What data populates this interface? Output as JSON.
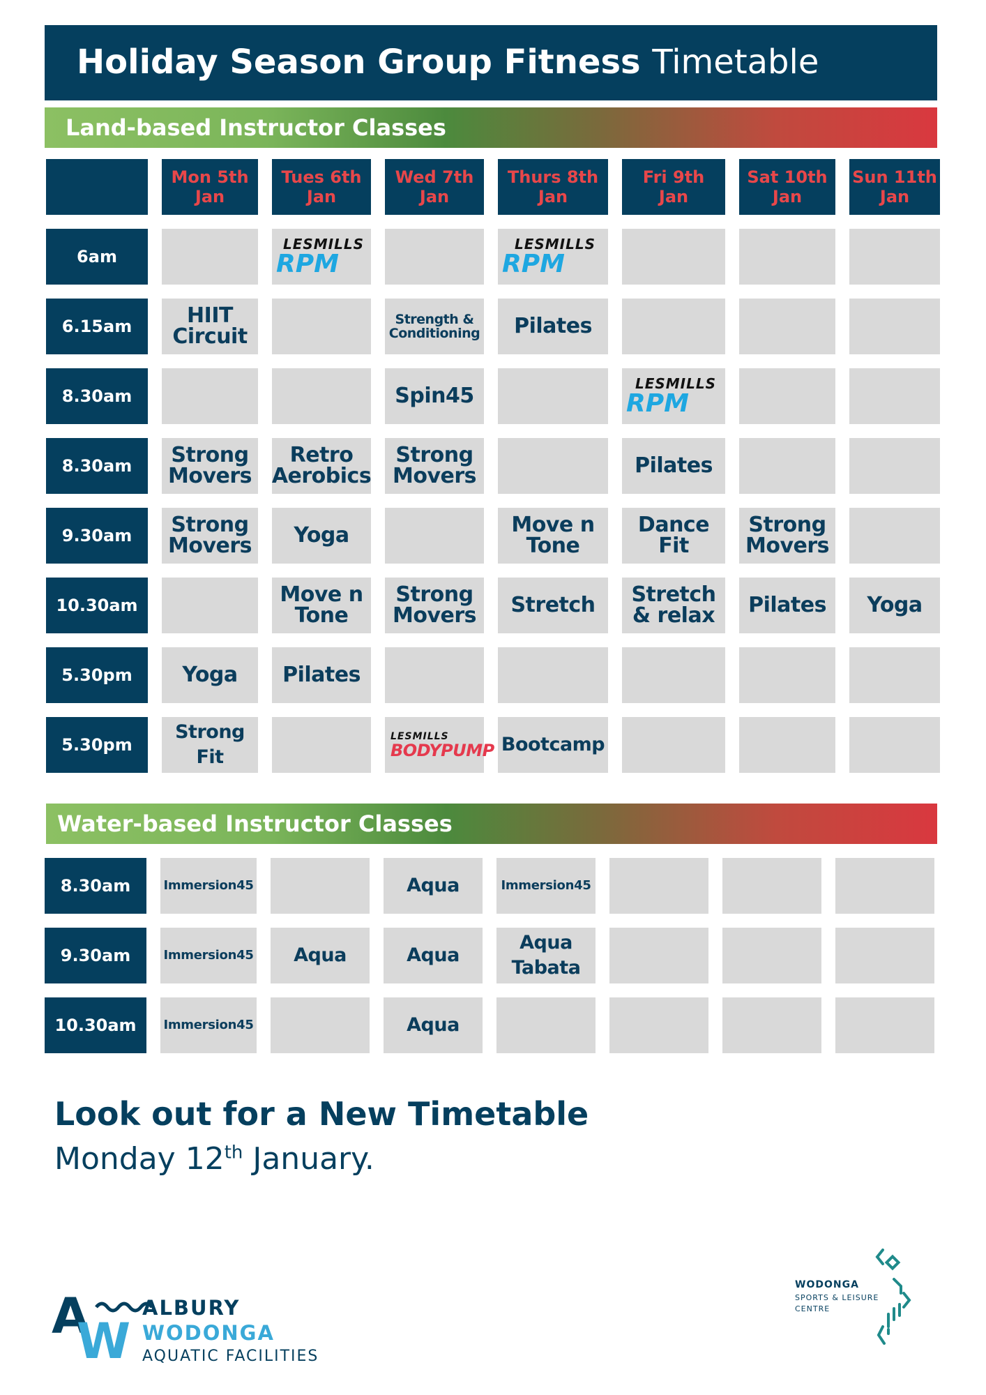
{
  "title": {
    "bold": "Holiday Season Group Fitness",
    "light": "Timetable"
  },
  "land": {
    "heading": "Land-based Instructor Classes",
    "days": [
      {
        "l1": "Mon 5th",
        "l2": "Jan"
      },
      {
        "l1": "Tues 6th",
        "l2": "Jan"
      },
      {
        "l1": "Wed 7th",
        "l2": "Jan"
      },
      {
        "l1": "Thurs 8th",
        "l2": "Jan"
      },
      {
        "l1": "Fri 9th",
        "l2": "Jan"
      },
      {
        "l1": "Sat 10th",
        "l2": "Jan"
      },
      {
        "l1": "Sun 11th",
        "l2": "Jan"
      }
    ],
    "rows": [
      {
        "time": "6am",
        "cells": [
          null,
          {
            "type": "lesmills",
            "brand": "LESMILLS",
            "program": "RPM"
          },
          null,
          {
            "type": "lesmills",
            "brand": "LESMILLS",
            "program": "RPM"
          },
          null,
          null,
          null
        ]
      },
      {
        "time": "6.15am",
        "cells": [
          {
            "type": "text",
            "lines": [
              "HIIT",
              "Circuit"
            ]
          },
          null,
          {
            "type": "text",
            "size": "sm",
            "lines": [
              "Strength &",
              "Conditioning"
            ]
          },
          {
            "type": "text",
            "lines": [
              "Pilates"
            ]
          },
          null,
          null,
          null
        ]
      },
      {
        "time": "8.30am",
        "cells": [
          null,
          null,
          {
            "type": "text",
            "lines": [
              "Spin45"
            ]
          },
          null,
          {
            "type": "lesmills",
            "brand": "LESMILLS",
            "program": "RPM"
          },
          null,
          null
        ]
      },
      {
        "time": "8.30am",
        "cells": [
          {
            "type": "text",
            "lines": [
              "Strong",
              "Movers"
            ]
          },
          {
            "type": "text",
            "lines": [
              "Retro",
              "Aerobics"
            ]
          },
          {
            "type": "text",
            "lines": [
              "Strong",
              "Movers"
            ]
          },
          null,
          {
            "type": "text",
            "lines": [
              "Pilates"
            ]
          },
          null,
          null
        ]
      },
      {
        "time": "9.30am",
        "cells": [
          {
            "type": "text",
            "lines": [
              "Strong",
              "Movers"
            ]
          },
          {
            "type": "text",
            "lines": [
              "Yoga"
            ]
          },
          null,
          {
            "type": "text",
            "lines": [
              "Move n",
              "Tone"
            ]
          },
          {
            "type": "text",
            "lines": [
              "Dance",
              "Fit"
            ]
          },
          {
            "type": "text",
            "lines": [
              "Strong",
              "Movers"
            ]
          },
          null
        ]
      },
      {
        "time": "10.30am",
        "cells": [
          null,
          {
            "type": "text",
            "lines": [
              "Move n",
              "Tone"
            ]
          },
          {
            "type": "text",
            "lines": [
              "Strong",
              "Movers"
            ]
          },
          {
            "type": "text",
            "lines": [
              "Stretch"
            ]
          },
          {
            "type": "text",
            "lines": [
              "Stretch",
              "& relax"
            ]
          },
          {
            "type": "text",
            "lines": [
              "Pilates"
            ]
          },
          {
            "type": "text",
            "lines": [
              "Yoga"
            ]
          }
        ]
      },
      {
        "time": "5.30pm",
        "cells": [
          {
            "type": "text",
            "lines": [
              "Yoga"
            ]
          },
          {
            "type": "text",
            "lines": [
              "Pilates"
            ]
          },
          null,
          null,
          null,
          null,
          null
        ]
      },
      {
        "time": "5.30pm",
        "cells": [
          {
            "type": "text",
            "size": "md",
            "lines": [
              "Strong Fit"
            ]
          },
          null,
          {
            "type": "lesmills-pump",
            "brand": "LESMILLS",
            "program": "BODYPUMP"
          },
          {
            "type": "text",
            "size": "md",
            "lines": [
              "Bootcamp"
            ]
          },
          null,
          null,
          null
        ]
      }
    ]
  },
  "water": {
    "heading": "Water-based Instructor Classes",
    "rows": [
      {
        "time": "8.30am",
        "cells": [
          {
            "type": "text",
            "size": "xs",
            "lines": [
              "Immersion45"
            ]
          },
          null,
          {
            "type": "text",
            "size": "md",
            "lines": [
              "Aqua"
            ]
          },
          {
            "type": "text",
            "size": "xs",
            "lines": [
              "Immersion45"
            ]
          },
          null,
          null,
          null
        ]
      },
      {
        "time": "9.30am",
        "cells": [
          {
            "type": "text",
            "size": "xs",
            "lines": [
              "Immersion45"
            ]
          },
          {
            "type": "text",
            "size": "md",
            "lines": [
              "Aqua"
            ]
          },
          {
            "type": "text",
            "size": "md",
            "lines": [
              "Aqua"
            ]
          },
          {
            "type": "text",
            "size": "md",
            "lines": [
              "Aqua",
              "Tabata"
            ]
          },
          null,
          null,
          null
        ]
      },
      {
        "time": "10.30am",
        "cells": [
          {
            "type": "text",
            "size": "xs",
            "lines": [
              "Immersion45"
            ]
          },
          null,
          {
            "type": "text",
            "size": "md",
            "lines": [
              "Aqua"
            ]
          },
          null,
          null,
          null,
          null
        ]
      }
    ]
  },
  "footer": {
    "heading": "Look out for a New Timetable",
    "sub_before": "Monday 12",
    "sub_sup": "th",
    "sub_after": " January."
  },
  "logos": {
    "left": {
      "mark": "AW",
      "line1": "ALBURY",
      "line2": "WODONGA",
      "line3": "AQUATIC FACILITIES"
    },
    "right": {
      "line1": "WODONGA",
      "line2": "SPORTS & LEISURE",
      "line3": "CENTRE"
    }
  },
  "colors": {
    "navy": "#053f5e",
    "red": "#e8474a",
    "cell": "#d9d9d9",
    "rpm_blue": "#1ea7e1",
    "pump_red": "#e5394d",
    "light_blue": "#3aa9d8",
    "teal": "#1f8a8a"
  }
}
